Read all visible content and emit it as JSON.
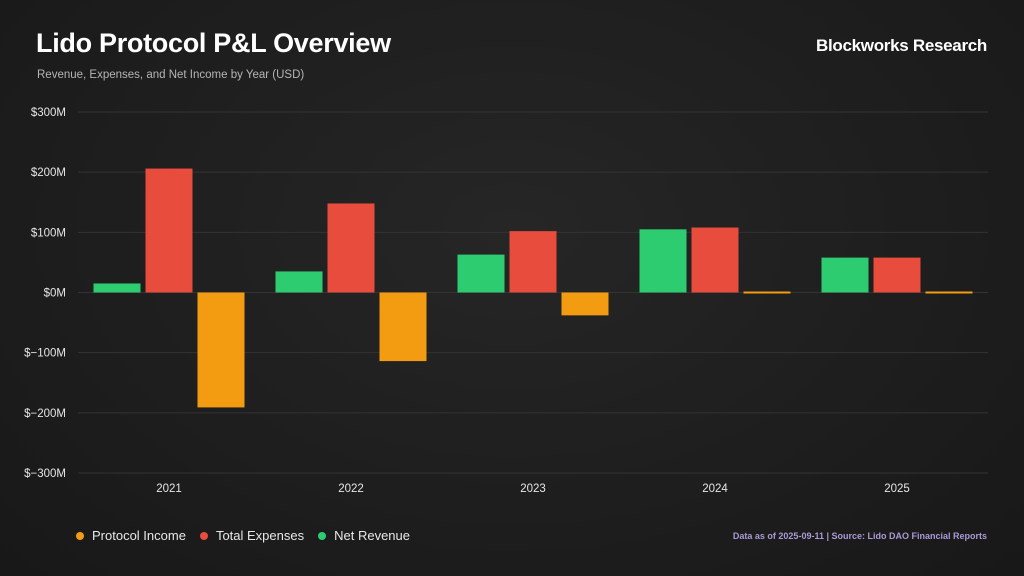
{
  "header": {
    "title": "Lido Protocol P&L Overview",
    "subtitle": "Revenue, Expenses, and Net Income by Year (USD)",
    "brand": "Blockworks Research"
  },
  "footnote": "Data as of 2025-09-11 | Source: Lido DAO Financial Reports",
  "chart_data": {
    "type": "bar",
    "categories": [
      "2021",
      "2022",
      "2023",
      "2024",
      "2025"
    ],
    "ylim": [
      -300,
      300
    ],
    "yticks": [
      300,
      200,
      100,
      0,
      -100,
      -200,
      -300
    ],
    "ytick_labels": [
      "$300M",
      "$200M",
      "$100M",
      "$0M",
      "$−100M",
      "$−200M",
      "$−300M"
    ],
    "units": "USD millions",
    "grid": true,
    "legend_position": "bottom-left",
    "series": [
      {
        "name": "Net Revenue",
        "color": "#2ecc71",
        "values": [
          15,
          35,
          63,
          105,
          58
        ]
      },
      {
        "name": "Total Expenses",
        "color": "#e74c3c",
        "values": [
          206,
          148,
          102,
          108,
          58
        ]
      },
      {
        "name": "Protocol Income",
        "color": "#f39c12",
        "values": [
          -191,
          -114,
          -38,
          -2,
          -1
        ]
      }
    ],
    "legend_order": [
      "Protocol Income",
      "Total Expenses",
      "Net Revenue"
    ]
  }
}
